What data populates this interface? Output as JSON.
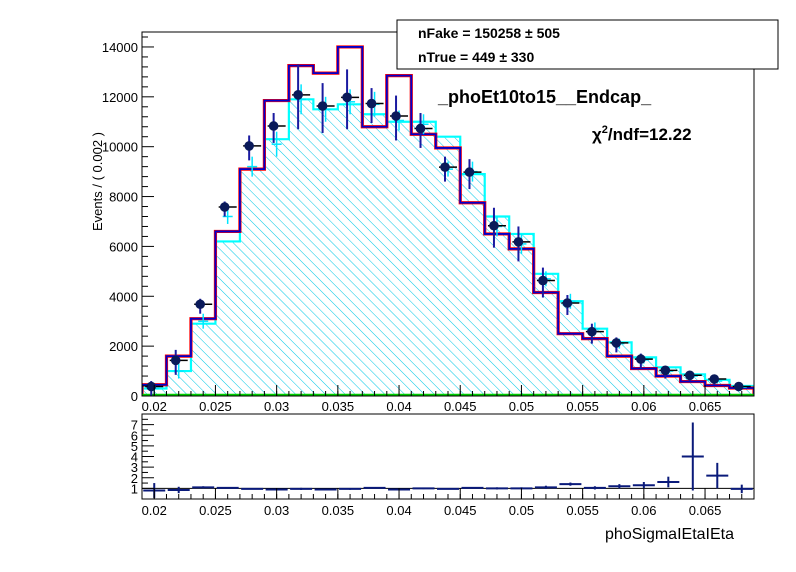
{
  "chart_data": [
    {
      "type": "histogram",
      "panel": "main",
      "title": "_phoEt10to15__Endcap_",
      "annotation": "χ²/ndf=12.22",
      "annotation_parts": {
        "chi": "χ",
        "sup": "2",
        "rest": "/ndf=12.22"
      },
      "ylabel": "Events / ( 0.002 )",
      "xlim": [
        0.019,
        0.069
      ],
      "ylim": [
        0,
        14600
      ],
      "yticks": [
        0,
        2000,
        4000,
        6000,
        8000,
        10000,
        12000,
        14000
      ],
      "ytick_labels": [
        "0",
        "2000",
        "4000",
        "6000",
        "8000",
        "10000",
        "12000",
        "14000"
      ],
      "xticks": [
        0.02,
        0.025,
        0.03,
        0.035,
        0.04,
        0.045,
        0.05,
        0.055,
        0.06,
        0.065
      ],
      "xtick_labels": [
        "0.02",
        "0.025",
        "0.03",
        "0.035",
        "0.04",
        "0.045",
        "0.05",
        "0.055",
        "0.06",
        "0.065"
      ],
      "bin_edges": [
        0.019,
        0.021,
        0.023,
        0.025,
        0.027,
        0.029,
        0.031,
        0.033,
        0.035,
        0.037,
        0.039,
        0.041,
        0.043,
        0.045,
        0.047,
        0.049,
        0.051,
        0.053,
        0.055,
        0.057,
        0.059,
        0.061,
        0.063,
        0.065,
        0.067,
        0.069
      ],
      "legend": {
        "placement": "top-right",
        "entries": [
          {
            "label": "nFake =  150258  ± 505"
          },
          {
            "label": "nTrue =  449  ± 330"
          }
        ]
      },
      "series": [
        {
          "role": "fit-total",
          "color": "#ff0000",
          "values": [
            450,
            1600,
            3100,
            6600,
            9100,
            11850,
            13250,
            12950,
            14000,
            10800,
            12850,
            10500,
            9950,
            7750,
            6500,
            5900,
            4150,
            2500,
            2300,
            1600,
            1100,
            800,
            580,
            420,
            320
          ]
        },
        {
          "role": "fit-fake",
          "color": "#0000cc",
          "values": [
            450,
            1600,
            3100,
            6600,
            9100,
            11850,
            13250,
            12950,
            14000,
            10800,
            12850,
            10500,
            9950,
            7750,
            6500,
            5900,
            4150,
            2500,
            2300,
            1600,
            1100,
            800,
            580,
            420,
            320
          ]
        },
        {
          "role": "template",
          "color": "#00ffff",
          "fill": "hatched",
          "values": [
            300,
            1000,
            2900,
            6200,
            9100,
            10300,
            11900,
            11500,
            11700,
            11300,
            11000,
            11000,
            10400,
            8900,
            7200,
            6500,
            4900,
            3800,
            2700,
            2150,
            1550,
            1150,
            870,
            650,
            400
          ]
        },
        {
          "role": "data",
          "color": "#0a1a5a",
          "marker": "circle",
          "values": [
            300,
            1350,
            3600,
            7500,
            9950,
            10750,
            12000,
            11550,
            11900,
            11650,
            11150,
            10650,
            9100,
            8900,
            6750,
            6100,
            4550,
            3650,
            2500,
            2050,
            1400,
            950,
            750,
            600,
            300
          ],
          "errors": [
            300,
            500,
            300,
            300,
            500,
            600,
            1300,
            1000,
            1200,
            700,
            900,
            700,
            500,
            600,
            800,
            700,
            600,
            400,
            400,
            300,
            300,
            250,
            150,
            150,
            100
          ]
        },
        {
          "role": "data-cyan",
          "color": "#00e5ff",
          "marker": "cross",
          "values": [
            300,
            1000,
            3000,
            7200,
            9200,
            10100,
            11900,
            11500,
            11800,
            11700,
            11050,
            10900,
            9100,
            9000,
            6800,
            6100,
            4700,
            3800,
            2700,
            2100,
            1450,
            1000,
            800,
            600,
            350
          ],
          "errors": [
            200,
            300,
            300,
            300,
            400,
            500,
            600,
            500,
            500,
            500,
            400,
            400,
            300,
            400,
            400,
            400,
            300,
            300,
            250,
            200,
            150,
            150,
            100,
            100,
            80
          ]
        }
      ],
      "baseline_color": "#00cc00"
    },
    {
      "type": "scatter",
      "panel": "ratio",
      "xlabel": "phoSigmaIEtaIEta",
      "xlim": [
        0.019,
        0.069
      ],
      "ylim": [
        0,
        8
      ],
      "yticks": [
        1,
        2,
        3,
        4,
        5,
        6,
        7
      ],
      "ytick_labels": [
        "1",
        "2",
        "3",
        "4",
        "5",
        "6",
        "7"
      ],
      "xticks": [
        0.02,
        0.025,
        0.03,
        0.035,
        0.04,
        0.045,
        0.05,
        0.055,
        0.06,
        0.065
      ],
      "xtick_labels": [
        "0.02",
        "0.025",
        "0.03",
        "0.035",
        "0.04",
        "0.045",
        "0.05",
        "0.055",
        "0.06",
        "0.065"
      ],
      "series": [
        {
          "role": "ratio",
          "color": "#0a1a7a",
          "x": [
            0.02,
            0.022,
            0.024,
            0.026,
            0.028,
            0.03,
            0.032,
            0.034,
            0.036,
            0.038,
            0.04,
            0.042,
            0.044,
            0.046,
            0.048,
            0.05,
            0.052,
            0.054,
            0.056,
            0.058,
            0.06,
            0.062,
            0.064,
            0.066,
            0.068
          ],
          "values": [
            0.8,
            0.85,
            1.1,
            1.05,
            0.95,
            0.9,
            0.95,
            0.9,
            0.95,
            1.05,
            0.9,
            1.0,
            0.95,
            1.05,
            1.0,
            1.0,
            1.1,
            1.4,
            1.05,
            1.2,
            1.3,
            1.6,
            4.0,
            2.2,
            0.95
          ],
          "errors": [
            0.7,
            0.3,
            0.1,
            0.05,
            0.05,
            0.05,
            0.1,
            0.08,
            0.08,
            0.06,
            0.07,
            0.07,
            0.05,
            0.07,
            0.1,
            0.1,
            0.15,
            0.15,
            0.15,
            0.2,
            0.3,
            0.5,
            3.2,
            1.2,
            0.4
          ]
        }
      ]
    }
  ]
}
